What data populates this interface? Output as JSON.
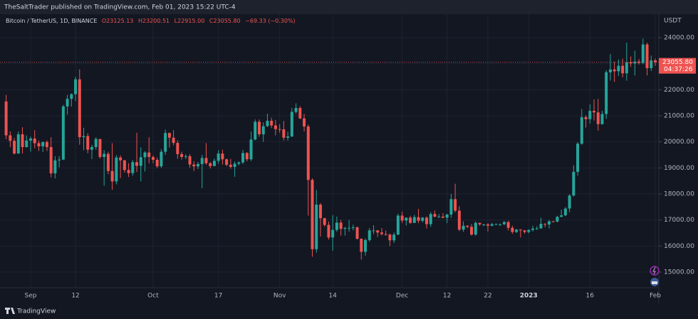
{
  "header": {
    "publisher": "TheSaltTrader published on TradingView.com, Feb 01, 2023 15:22 UTC-4"
  },
  "footer": {
    "brand": "TradingView"
  },
  "chart_data": {
    "type": "candlestick",
    "symbol": "Bitcoin / TetherUS, 1D, BINANCE",
    "legend_open": "O23125.13",
    "legend_high": "H23200.51",
    "legend_low": "L22915.00",
    "legend_close": "C23055.80",
    "legend_change": "−69.33 (−0.30%)",
    "y_axis_unit": "USDT",
    "last_price_label": "23055.80",
    "countdown": "04:37:26",
    "up_color": "#26a69a",
    "down_color": "#ef5350",
    "grid": true,
    "ylim": [
      14400,
      24900
    ],
    "yticks": [
      {
        "value": 15000,
        "label": "15000.00"
      },
      {
        "value": 16000,
        "label": "16000.00"
      },
      {
        "value": 17000,
        "label": "17000.00"
      },
      {
        "value": 18000,
        "label": "18000.00"
      },
      {
        "value": 19000,
        "label": "19000.00"
      },
      {
        "value": 20000,
        "label": "20000.00"
      },
      {
        "value": 21000,
        "label": "21000.00"
      },
      {
        "value": 22000,
        "label": "22000.00"
      },
      {
        "value": 23000,
        "label": "23000.00"
      },
      {
        "value": 24000,
        "label": "24000.00"
      }
    ],
    "categories": [
      null,
      null,
      null,
      null,
      null,
      null,
      "Sep",
      null,
      null,
      null,
      null,
      null,
      null,
      null,
      null,
      null,
      null,
      "12",
      null,
      null,
      null,
      null,
      null,
      null,
      null,
      null,
      null,
      null,
      null,
      null,
      null,
      null,
      null,
      null,
      null,
      null,
      "Oct",
      null,
      null,
      null,
      null,
      null,
      null,
      null,
      null,
      null,
      null,
      null,
      null,
      null,
      null,
      null,
      "17",
      null,
      null,
      null,
      null,
      null,
      null,
      null,
      null,
      null,
      null,
      null,
      null,
      null,
      null,
      "Nov",
      null,
      null,
      null,
      null,
      null,
      null,
      null,
      null,
      null,
      null,
      null,
      null,
      "14",
      null,
      null,
      null,
      null,
      null,
      null,
      null,
      null,
      null,
      null,
      null,
      null,
      null,
      null,
      null,
      null,
      "Dec",
      null,
      null,
      null,
      null,
      null,
      null,
      null,
      null,
      null,
      null,
      "12",
      null,
      null,
      null,
      null,
      null,
      null,
      null,
      null,
      null,
      "22",
      null,
      null,
      null,
      null,
      null,
      null,
      null,
      null,
      null,
      "2023",
      null,
      null,
      null,
      null,
      null,
      null,
      null,
      null,
      null,
      null,
      null,
      null,
      null,
      null,
      "16",
      null,
      null,
      null,
      null,
      null,
      null,
      null,
      null,
      null,
      null,
      null,
      null,
      null,
      null,
      null,
      "Feb"
    ],
    "open": [
      21550,
      20250,
      20040,
      19550,
      20290,
      19800,
      20050,
      20130,
      19950,
      19830,
      19990,
      19800,
      18790,
      19290,
      19320,
      21360,
      21650,
      21830,
      22400,
      20180,
      20220,
      19700,
      19800,
      20110,
      19420,
      19540,
      18880,
      18480,
      19400,
      19290,
      18920,
      18800,
      19220,
      19080,
      19410,
      19590,
      19420,
      19310,
      19060,
      19620,
      20340,
      20160,
      19960,
      19530,
      19420,
      19450,
      19130,
      19060,
      19150,
      19380,
      19180,
      19070,
      19270,
      19550,
      19330,
      19120,
      19040,
      19160,
      19210,
      19570,
      19330,
      20090,
      20770,
      20290,
      20600,
      20810,
      20630,
      20490,
      20480,
      20160,
      20210,
      21150,
      21300,
      20900,
      20590,
      18540,
      15880,
      17590,
      17070,
      16810,
      16330,
      16620,
      16900,
      16660,
      16690,
      16700,
      16720,
      16280,
      15780,
      16230,
      16600,
      16600,
      16520,
      16460,
      16440,
      16220,
      16440,
      17170,
      16980,
      17090,
      16890,
      17110,
      16970,
      17090,
      16840,
      17230,
      17130,
      17130,
      17090,
      17210,
      17800,
      17360,
      16630,
      16780,
      16740,
      16440,
      16890,
      16830,
      16830,
      16780,
      16840,
      16840,
      16840,
      16920,
      16700,
      16540,
      16630,
      16600,
      16540,
      16620,
      16670,
      16680,
      16850,
      16830,
      16950,
      16940,
      17120,
      17180,
      17440,
      17940,
      18850,
      19930,
      20950,
      20870,
      21190,
      21130,
      20680,
      21070,
      22670,
      22780,
      22710,
      22920,
      22630,
      23060,
      23010,
      23080,
      23030,
      23740,
      22830,
      23125.13
    ],
    "high": [
      21800,
      20400,
      20150,
      20400,
      20560,
      20250,
      20200,
      20450,
      20050,
      20020,
      20050,
      20180,
      19450,
      19450,
      21420,
      21800,
      21860,
      22500,
      22780,
      20540,
      20330,
      19890,
      20180,
      20110,
      19680,
      19620,
      19950,
      19490,
      19480,
      19310,
      19180,
      19310,
      20350,
      19790,
      19640,
      20180,
      19480,
      19400,
      19720,
      20470,
      20360,
      20450,
      20060,
      19620,
      19520,
      19530,
      19260,
      19230,
      19500,
      19950,
      19220,
      19360,
      19680,
      19700,
      19360,
      19350,
      19250,
      19250,
      19690,
      19610,
      20400,
      20860,
      20860,
      20750,
      21080,
      20930,
      20840,
      20680,
      20800,
      20390,
      21300,
      21480,
      21370,
      21070,
      20670,
      18600,
      18150,
      17650,
      17080,
      16940,
      17190,
      17130,
      17000,
      16740,
      17000,
      16820,
      16750,
      16290,
      16290,
      16690,
      16800,
      16620,
      16690,
      16600,
      16480,
      16520,
      17240,
      17320,
      17100,
      17160,
      17200,
      17430,
      17120,
      17140,
      17300,
      17360,
      17230,
      17270,
      17240,
      18000,
      18390,
      17530,
      16950,
      16800,
      16850,
      16950,
      16900,
      16850,
      16880,
      16890,
      16870,
      16860,
      16960,
      16970,
      16780,
      16660,
      16650,
      16620,
      16640,
      16780,
      16760,
      17090,
      16880,
      17000,
      16960,
      17160,
      17400,
      17500,
      17990,
      19100,
      19990,
      21260,
      21020,
      21440,
      21630,
      21650,
      21190,
      22750,
      23370,
      23080,
      23160,
      23190,
      23810,
      23280,
      23500,
      23180,
      23960,
      23810,
      23310,
      23200.51
    ],
    "low": [
      20100,
      19800,
      19520,
      19550,
      19550,
      19780,
      19620,
      19760,
      19650,
      19610,
      19650,
      18640,
      18600,
      19020,
      19300,
      21050,
      21350,
      21560,
      19890,
      19680,
      19560,
      19340,
      19700,
      19360,
      18320,
      18760,
      18160,
      18370,
      18610,
      18820,
      18650,
      18700,
      18840,
      18480,
      18860,
      19180,
      19180,
      18990,
      19000,
      19500,
      19780,
      19870,
      19350,
      19320,
      19340,
      19010,
      18880,
      18960,
      18220,
      19120,
      18980,
      19070,
      19160,
      19130,
      19070,
      18970,
      18660,
      19100,
      19150,
      19250,
      19260,
      20060,
      20200,
      20000,
      20580,
      20530,
      20250,
      20350,
      20050,
      20050,
      20180,
      21080,
      20870,
      20400,
      17170,
      15590,
      15750,
      16360,
      16750,
      16250,
      15820,
      16550,
      16400,
      16400,
      16550,
      16600,
      16250,
      15480,
      15630,
      16170,
      16460,
      16350,
      16410,
      16400,
      16000,
      16120,
      16420,
      16880,
      16790,
      16850,
      16880,
      16880,
      16910,
      16680,
      16740,
      17100,
      17090,
      17070,
      16880,
      17090,
      17290,
      16570,
      16550,
      16680,
      16400,
      16400,
      16780,
      16770,
      16560,
      16760,
      16810,
      16770,
      16800,
      16600,
      16470,
      16500,
      16330,
      16480,
      16490,
      16560,
      16620,
      16660,
      16720,
      16680,
      16910,
      16910,
      17110,
      17150,
      17300,
      17900,
      18700,
      19890,
      20550,
      20700,
      20820,
      20430,
      20660,
      20880,
      22350,
      22300,
      22530,
      22480,
      22350,
      22880,
      22550,
      22970,
      22980,
      22550,
      22720,
      22915
    ],
    "close": [
      20250,
      20040,
      19550,
      20290,
      19800,
      20050,
      20130,
      19950,
      19830,
      19990,
      19800,
      18790,
      19290,
      19320,
      21360,
      21650,
      21830,
      22400,
      20180,
      20220,
      19700,
      19800,
      20110,
      19420,
      19540,
      18880,
      18480,
      19400,
      19290,
      18920,
      18800,
      19220,
      19080,
      19410,
      19590,
      19420,
      19310,
      19060,
      19620,
      20340,
      20160,
      19960,
      19530,
      19420,
      19450,
      19130,
      19060,
      19150,
      19380,
      19180,
      19070,
      19270,
      19550,
      19330,
      19120,
      19040,
      19160,
      19210,
      19570,
      19330,
      20090,
      20770,
      20290,
      20600,
      20810,
      20630,
      20490,
      20480,
      20160,
      20210,
      21150,
      21300,
      20900,
      20590,
      18540,
      15880,
      17590,
      17070,
      16810,
      16330,
      16620,
      16900,
      16660,
      16690,
      16700,
      16720,
      16280,
      15780,
      16230,
      16600,
      16600,
      16520,
      16460,
      16440,
      16220,
      16440,
      17170,
      16980,
      17090,
      16890,
      17110,
      16970,
      17090,
      16840,
      17230,
      17130,
      17130,
      17090,
      17210,
      17800,
      17360,
      16630,
      16780,
      16740,
      16440,
      16890,
      16830,
      16830,
      16780,
      16840,
      16840,
      16840,
      16920,
      16700,
      16540,
      16630,
      16600,
      16540,
      16620,
      16670,
      16680,
      16850,
      16830,
      16950,
      16940,
      17120,
      17180,
      17440,
      17940,
      18850,
      19930,
      20950,
      20870,
      21190,
      21130,
      20680,
      21070,
      22670,
      22780,
      22710,
      22920,
      22630,
      23060,
      23010,
      23080,
      23030,
      23740,
      22830,
      23125.13,
      23055.8
    ]
  }
}
